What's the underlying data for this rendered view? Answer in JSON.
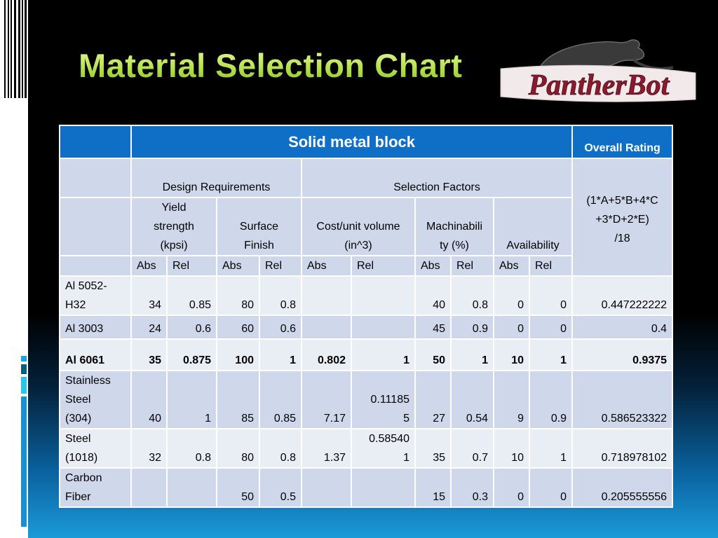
{
  "slide": {
    "title": "Material Selection Chart",
    "logo_text": "PantherBot"
  },
  "colors": {
    "header_blue": "#0f6fc6",
    "row_dark": "#cfd8ea",
    "row_light": "#e9edf4",
    "title_green": "#b7e24e",
    "logo_red": "#8b1a2e"
  },
  "table": {
    "group_header": "Solid metal block",
    "overall_header": "Overall Rating",
    "design_requirements": "Design Requirements",
    "selection_factors": "Selection Factors",
    "formula_lines": [
      "(1*A+5*B+4*C",
      "+3*D+2*E)",
      "/18"
    ],
    "criteria": {
      "yield": [
        "Yield",
        "strength",
        "(kpsi)"
      ],
      "surface": [
        "Surface",
        "Finish"
      ],
      "cost": [
        "Cost/unit volume",
        "(in^3)"
      ],
      "machinability": [
        "Machinabili",
        "ty (%)"
      ],
      "availability": "Availability"
    },
    "abs_label": "Abs",
    "rel_label": "Rel",
    "rows": [
      {
        "material": [
          "Al 5052-",
          "H32"
        ],
        "cells": [
          "34",
          "0.85",
          "80",
          "0.8",
          "",
          "",
          "40",
          "0.8",
          "0",
          "0",
          "0.447222222"
        ]
      },
      {
        "material": [
          "Al 3003"
        ],
        "cells": [
          "24",
          "0.6",
          "60",
          "0.6",
          "",
          "",
          "45",
          "0.9",
          "0",
          "0",
          "0.4"
        ]
      },
      {
        "material": [
          "Al 6061"
        ],
        "cells": [
          "35",
          "0.875",
          "100",
          "1",
          "0.802",
          "1",
          "50",
          "1",
          "10",
          "1",
          "0.9375"
        ]
      },
      {
        "material": [
          "Stainless",
          "Steel",
          "(304)"
        ],
        "cells": [
          "40",
          "1",
          "85",
          "0.85",
          "7.17",
          "0.11185 5",
          "27",
          "0.54",
          "9",
          "0.9",
          "0.586523322"
        ]
      },
      {
        "material": [
          "Steel",
          "(1018)"
        ],
        "cells": [
          "32",
          "0.8",
          "80",
          "0.8",
          "1.37",
          "0.58540 1",
          "35",
          "0.7",
          "10",
          "1",
          "0.718978102"
        ]
      },
      {
        "material": [
          "Carbon",
          "Fiber"
        ],
        "cells": [
          "",
          "",
          "50",
          "0.5",
          "",
          "",
          "15",
          "0.3",
          "0",
          "0",
          "0.205555556"
        ]
      }
    ]
  }
}
